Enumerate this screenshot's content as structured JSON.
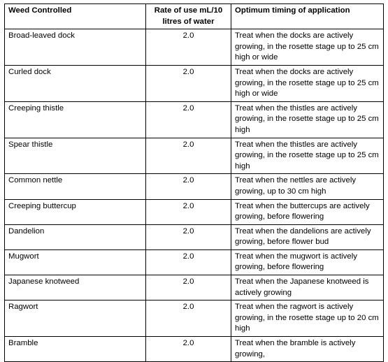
{
  "headers": {
    "weed": "Weed Controlled",
    "rate": "Rate of use mL/10 litres of water",
    "timing": "Optimum timing of application"
  },
  "rows": [
    {
      "weed": "Broad-leaved dock",
      "rate": "2.0",
      "timing": "Treat when the docks are actively growing, in the rosette stage up to 25 cm high or wide"
    },
    {
      "weed": "Curled dock",
      "rate": "2.0",
      "timing": "Treat when the docks are actively growing, in the rosette stage up to 25 cm high or wide"
    },
    {
      "weed": "Creeping thistle",
      "rate": "2.0",
      "timing": "Treat when the thistles are actively growing, in the rosette stage up to 25 cm high"
    },
    {
      "weed": "Spear thistle",
      "rate": "2.0",
      "timing": "Treat when the thistles are actively growing, in the rosette stage up to 25 cm high"
    },
    {
      "weed": "Common nettle",
      "rate": "2.0",
      "timing": "Treat when the nettles are actively growing, up to 30 cm high"
    },
    {
      "weed": "Creeping buttercup",
      "rate": "2.0",
      "timing": "Treat when the buttercups are actively growing, before flowering"
    },
    {
      "weed": "Dandelion",
      "rate": "2.0",
      "timing": "Treat when the dandelions are actively growing, before flower bud"
    },
    {
      "weed": "Mugwort",
      "rate": "2.0",
      "timing": "Treat when the mugwort is actively growing, before flowering"
    },
    {
      "weed": "Japanese knotweed",
      "rate": "2.0",
      "timing": "Treat when the Japanese knotweed is actively growing"
    },
    {
      "weed": "Ragwort",
      "rate": "2.0",
      "timing": "Treat when the ragwort is actively growing, in the rosette stage up to 20 cm high"
    },
    {
      "weed": "Bramble",
      "rate": "2.0",
      "timing": "Treat when the bramble is actively growing,"
    }
  ]
}
